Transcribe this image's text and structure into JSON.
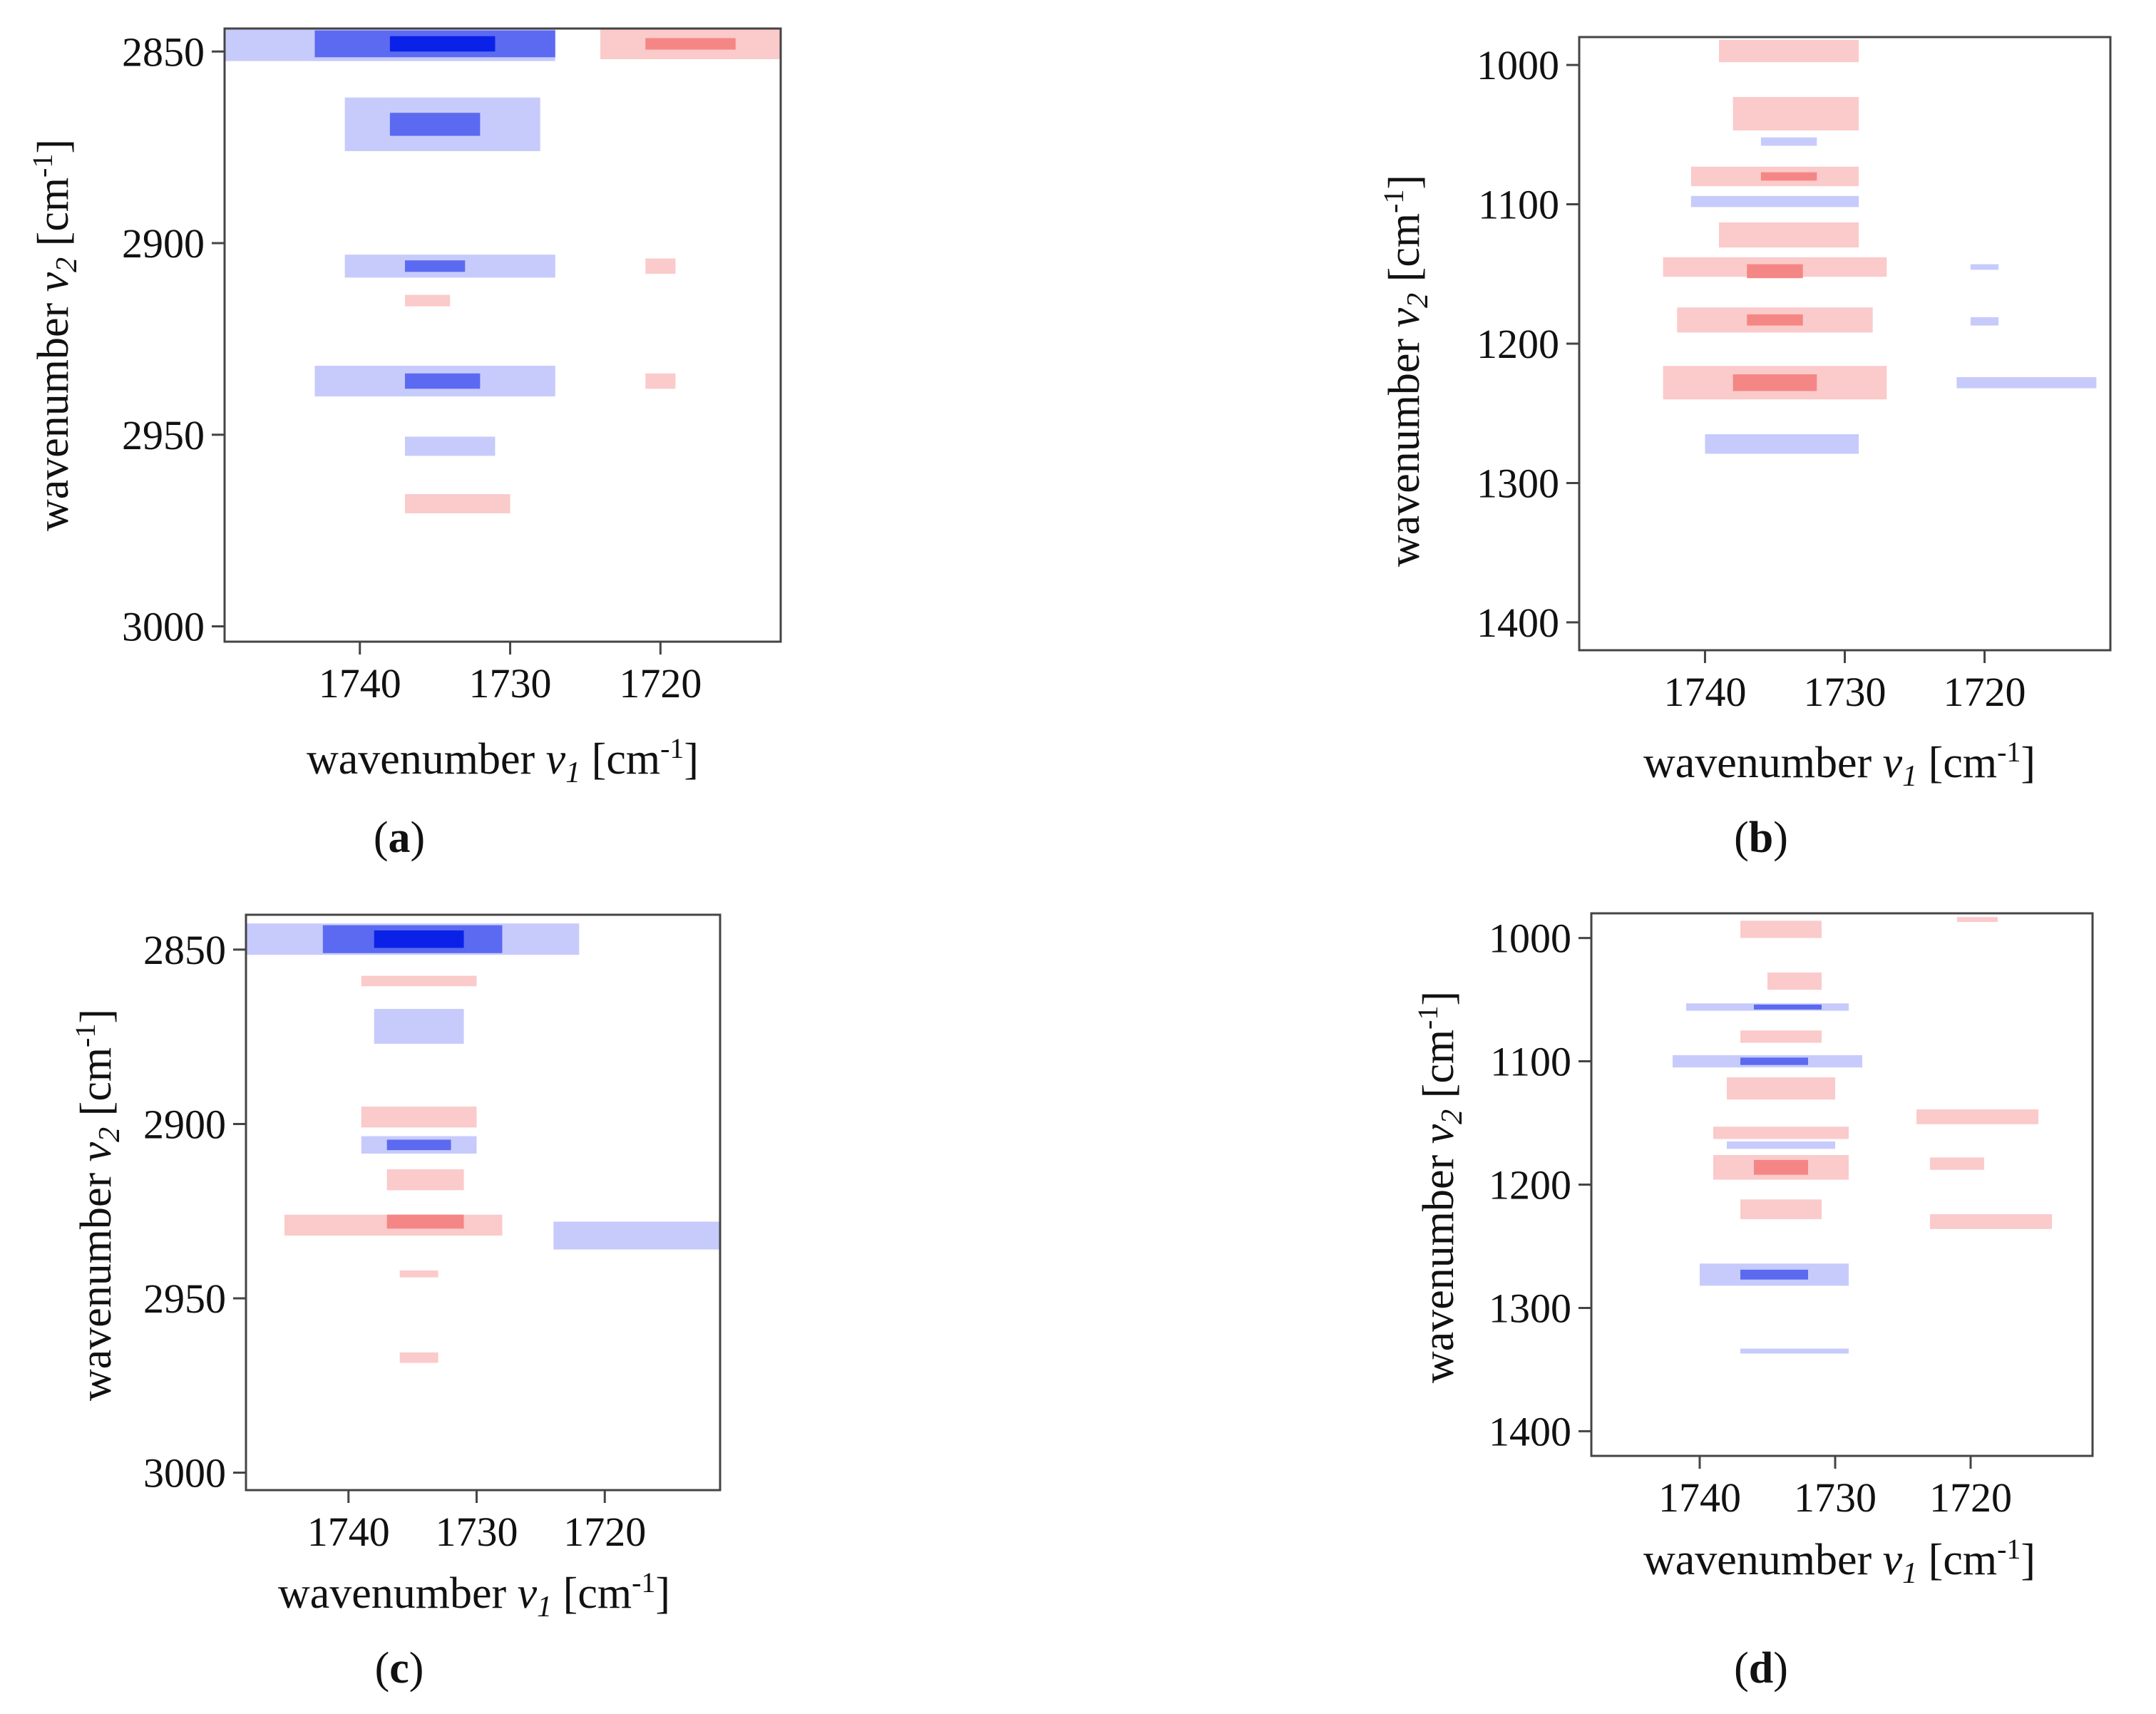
{
  "figure": {
    "colors": {
      "negative_strong": "#0a22e8",
      "negative_mid": "#5b6af0",
      "negative_light": "#c7cbfb",
      "positive_strong": "#ee2a2a",
      "positive_mid": "#f58686",
      "positive_light": "#fbcaca"
    }
  },
  "axes_text": {
    "x_label_prefix": "wavenumber ",
    "x_var": "v",
    "x_sub": "1",
    "y_label_prefix": "wavenumber ",
    "y_var": "v",
    "y_sub": "2",
    "unit_open": " [cm",
    "unit_sup": "-1",
    "unit_close": "]"
  },
  "chart_data": [
    {
      "type": "heatmap",
      "panel_label": "a",
      "xlabel": "wavenumber v1 [cm-1]",
      "ylabel": "wavenumber v2 [cm-1]",
      "xlim": [
        1749,
        1712
      ],
      "ylim": [
        2844,
        3004
      ],
      "xticks": [
        "1740",
        "1730",
        "1720"
      ],
      "yticks": [
        "2850",
        "2900",
        "2950",
        "3000"
      ],
      "features": [
        {
          "x0": 1749,
          "x1": 1727,
          "y": 2848,
          "h": 9,
          "sign": "neg",
          "level": 1
        },
        {
          "x0": 1743,
          "x1": 1727,
          "y": 2848,
          "h": 7,
          "sign": "neg",
          "level": 2
        },
        {
          "x0": 1738,
          "x1": 1731,
          "y": 2848,
          "h": 4,
          "sign": "neg",
          "level": 3
        },
        {
          "x0": 1724,
          "x1": 1712,
          "y": 2848,
          "h": 8,
          "sign": "pos",
          "level": 1
        },
        {
          "x0": 1721,
          "x1": 1715,
          "y": 2848,
          "h": 3,
          "sign": "pos",
          "level": 2
        },
        {
          "x0": 1741,
          "x1": 1728,
          "y": 2869,
          "h": 14,
          "sign": "neg",
          "level": 1
        },
        {
          "x0": 1738,
          "x1": 1732,
          "y": 2869,
          "h": 6,
          "sign": "neg",
          "level": 2
        },
        {
          "x0": 1741,
          "x1": 1727,
          "y": 2906,
          "h": 6,
          "sign": "neg",
          "level": 1
        },
        {
          "x0": 1737,
          "x1": 1733,
          "y": 2906,
          "h": 3,
          "sign": "neg",
          "level": 2
        },
        {
          "x0": 1721,
          "x1": 1719,
          "y": 2906,
          "h": 4,
          "sign": "pos",
          "level": 1
        },
        {
          "x0": 1737,
          "x1": 1734,
          "y": 2915,
          "h": 3,
          "sign": "pos",
          "level": 1
        },
        {
          "x0": 1743,
          "x1": 1727,
          "y": 2936,
          "h": 8,
          "sign": "neg",
          "level": 1
        },
        {
          "x0": 1737,
          "x1": 1732,
          "y": 2936,
          "h": 4,
          "sign": "neg",
          "level": 2
        },
        {
          "x0": 1721,
          "x1": 1719,
          "y": 2936,
          "h": 4,
          "sign": "pos",
          "level": 1
        },
        {
          "x0": 1737,
          "x1": 1731,
          "y": 2953,
          "h": 5,
          "sign": "neg",
          "level": 1
        },
        {
          "x0": 1737,
          "x1": 1730,
          "y": 2968,
          "h": 5,
          "sign": "pos",
          "level": 1
        }
      ]
    },
    {
      "type": "heatmap",
      "panel_label": "b",
      "xlabel": "wavenumber v1 [cm-1]",
      "ylabel": "wavenumber v2 [cm-1]",
      "xlim": [
        1749,
        1711
      ],
      "ylim": [
        980,
        1420
      ],
      "xticks": [
        "1740",
        "1730",
        "1720"
      ],
      "yticks": [
        "1000",
        "1100",
        "1200",
        "1300",
        "1400"
      ],
      "features": [
        {
          "x0": 1739,
          "x1": 1729,
          "y": 990,
          "h": 16,
          "sign": "pos",
          "level": 1
        },
        {
          "x0": 1738,
          "x1": 1729,
          "y": 1035,
          "h": 24,
          "sign": "pos",
          "level": 1
        },
        {
          "x0": 1736,
          "x1": 1732,
          "y": 1055,
          "h": 6,
          "sign": "neg",
          "level": 1
        },
        {
          "x0": 1741,
          "x1": 1729,
          "y": 1080,
          "h": 14,
          "sign": "pos",
          "level": 1
        },
        {
          "x0": 1736,
          "x1": 1732,
          "y": 1080,
          "h": 6,
          "sign": "pos",
          "level": 2
        },
        {
          "x0": 1741,
          "x1": 1729,
          "y": 1098,
          "h": 8,
          "sign": "neg",
          "level": 1
        },
        {
          "x0": 1739,
          "x1": 1729,
          "y": 1122,
          "h": 18,
          "sign": "pos",
          "level": 1
        },
        {
          "x0": 1743,
          "x1": 1727,
          "y": 1145,
          "h": 14,
          "sign": "pos",
          "level": 1
        },
        {
          "x0": 1737,
          "x1": 1733,
          "y": 1148,
          "h": 10,
          "sign": "pos",
          "level": 2
        },
        {
          "x0": 1742,
          "x1": 1728,
          "y": 1183,
          "h": 18,
          "sign": "pos",
          "level": 1
        },
        {
          "x0": 1737,
          "x1": 1733,
          "y": 1183,
          "h": 8,
          "sign": "pos",
          "level": 2
        },
        {
          "x0": 1743,
          "x1": 1727,
          "y": 1228,
          "h": 24,
          "sign": "pos",
          "level": 1
        },
        {
          "x0": 1738,
          "x1": 1732,
          "y": 1228,
          "h": 12,
          "sign": "pos",
          "level": 2
        },
        {
          "x0": 1740,
          "x1": 1729,
          "y": 1272,
          "h": 14,
          "sign": "neg",
          "level": 1
        },
        {
          "x0": 1721,
          "x1": 1719,
          "y": 1145,
          "h": 4,
          "sign": "neg",
          "level": 1
        },
        {
          "x0": 1721,
          "x1": 1719,
          "y": 1184,
          "h": 6,
          "sign": "neg",
          "level": 1
        },
        {
          "x0": 1722,
          "x1": 1712,
          "y": 1228,
          "h": 8,
          "sign": "neg",
          "level": 1
        }
      ]
    },
    {
      "type": "heatmap",
      "panel_label": "c",
      "xlabel": "wavenumber v1 [cm-1]",
      "ylabel": "wavenumber v2 [cm-1]",
      "xlim": [
        1748,
        1711
      ],
      "ylim": [
        2840,
        3005
      ],
      "xticks": [
        "1740",
        "1730",
        "1720"
      ],
      "yticks": [
        "2850",
        "2900",
        "2950",
        "3000"
      ],
      "features": [
        {
          "x0": 1748,
          "x1": 1722,
          "y": 2847,
          "h": 9,
          "sign": "neg",
          "level": 1
        },
        {
          "x0": 1742,
          "x1": 1728,
          "y": 2847,
          "h": 8,
          "sign": "neg",
          "level": 2
        },
        {
          "x0": 1738,
          "x1": 1731,
          "y": 2847,
          "h": 5,
          "sign": "neg",
          "level": 3
        },
        {
          "x0": 1739,
          "x1": 1730,
          "y": 2859,
          "h": 3,
          "sign": "pos",
          "level": 1
        },
        {
          "x0": 1738,
          "x1": 1731,
          "y": 2872,
          "h": 10,
          "sign": "neg",
          "level": 1
        },
        {
          "x0": 1739,
          "x1": 1730,
          "y": 2898,
          "h": 6,
          "sign": "pos",
          "level": 1
        },
        {
          "x0": 1739,
          "x1": 1730,
          "y": 2906,
          "h": 5,
          "sign": "neg",
          "level": 1
        },
        {
          "x0": 1737,
          "x1": 1732,
          "y": 2906,
          "h": 3,
          "sign": "neg",
          "level": 2
        },
        {
          "x0": 1737,
          "x1": 1731,
          "y": 2916,
          "h": 6,
          "sign": "pos",
          "level": 1
        },
        {
          "x0": 1745,
          "x1": 1728,
          "y": 2929,
          "h": 6,
          "sign": "pos",
          "level": 1
        },
        {
          "x0": 1737,
          "x1": 1731,
          "y": 2928,
          "h": 4,
          "sign": "pos",
          "level": 2
        },
        {
          "x0": 1724,
          "x1": 1711,
          "y": 2932,
          "h": 8,
          "sign": "neg",
          "level": 1
        },
        {
          "x0": 1736,
          "x1": 1733,
          "y": 2943,
          "h": 2,
          "sign": "pos",
          "level": 1
        },
        {
          "x0": 1736,
          "x1": 1733,
          "y": 2967,
          "h": 3,
          "sign": "pos",
          "level": 1
        }
      ]
    },
    {
      "type": "heatmap",
      "panel_label": "d",
      "xlabel": "wavenumber v1 [cm-1]",
      "ylabel": "wavenumber v2 [cm-1]",
      "xlim": [
        1748,
        1711
      ],
      "ylim": [
        980,
        1420
      ],
      "xticks": [
        "1740",
        "1730",
        "1720"
      ],
      "yticks": [
        "1000",
        "1100",
        "1200",
        "1300",
        "1400"
      ],
      "features": [
        {
          "x0": 1737,
          "x1": 1731,
          "y": 993,
          "h": 14,
          "sign": "pos",
          "level": 1
        },
        {
          "x0": 1735,
          "x1": 1731,
          "y": 1035,
          "h": 14,
          "sign": "pos",
          "level": 1
        },
        {
          "x0": 1741,
          "x1": 1729,
          "y": 1056,
          "h": 6,
          "sign": "neg",
          "level": 1
        },
        {
          "x0": 1736,
          "x1": 1731,
          "y": 1056,
          "h": 4,
          "sign": "neg",
          "level": 2
        },
        {
          "x0": 1737,
          "x1": 1731,
          "y": 1080,
          "h": 10,
          "sign": "pos",
          "level": 1
        },
        {
          "x0": 1742,
          "x1": 1728,
          "y": 1100,
          "h": 10,
          "sign": "neg",
          "level": 1
        },
        {
          "x0": 1737,
          "x1": 1732,
          "y": 1100,
          "h": 6,
          "sign": "neg",
          "level": 2
        },
        {
          "x0": 1738,
          "x1": 1730,
          "y": 1122,
          "h": 18,
          "sign": "pos",
          "level": 1
        },
        {
          "x0": 1739,
          "x1": 1729,
          "y": 1158,
          "h": 10,
          "sign": "pos",
          "level": 1
        },
        {
          "x0": 1738,
          "x1": 1730,
          "y": 1168,
          "h": 6,
          "sign": "neg",
          "level": 1
        },
        {
          "x0": 1739,
          "x1": 1729,
          "y": 1186,
          "h": 20,
          "sign": "pos",
          "level": 1
        },
        {
          "x0": 1736,
          "x1": 1732,
          "y": 1186,
          "h": 12,
          "sign": "pos",
          "level": 2
        },
        {
          "x0": 1737,
          "x1": 1731,
          "y": 1220,
          "h": 16,
          "sign": "pos",
          "level": 1
        },
        {
          "x0": 1740,
          "x1": 1729,
          "y": 1273,
          "h": 18,
          "sign": "neg",
          "level": 1
        },
        {
          "x0": 1737,
          "x1": 1732,
          "y": 1273,
          "h": 8,
          "sign": "neg",
          "level": 2
        },
        {
          "x0": 1737,
          "x1": 1729,
          "y": 1335,
          "h": 4,
          "sign": "neg",
          "level": 1
        },
        {
          "x0": 1724,
          "x1": 1715,
          "y": 1145,
          "h": 12,
          "sign": "pos",
          "level": 1
        },
        {
          "x0": 1723,
          "x1": 1719,
          "y": 1183,
          "h": 10,
          "sign": "pos",
          "level": 1
        },
        {
          "x0": 1723,
          "x1": 1714,
          "y": 1230,
          "h": 12,
          "sign": "pos",
          "level": 1
        },
        {
          "x0": 1721,
          "x1": 1718,
          "y": 985,
          "h": 4,
          "sign": "pos",
          "level": 1
        }
      ]
    }
  ]
}
